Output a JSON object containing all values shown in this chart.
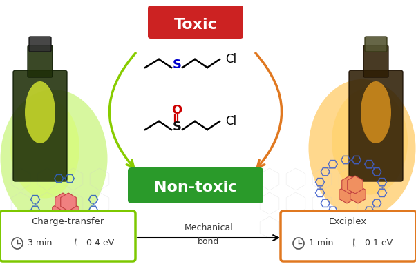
{
  "toxic_label": "Toxic",
  "nontoxic_label": "Non-toxic",
  "toxic_color": "#cc2222",
  "nontoxic_color": "#2a9a2a",
  "left_box_color": "#7dc800",
  "right_box_color": "#e07820",
  "left_title": "Charge-transfer",
  "right_title": "Exciplex",
  "left_time": "3 min",
  "left_energy": "0.4 eV",
  "right_time": "1 min",
  "right_energy": "0.1 eV",
  "arrow_label_top": "Mechanical",
  "arrow_label_bot": "bond",
  "green_arrow_color": "#88cc00",
  "orange_arrow_color": "#e07820",
  "sulfur_color_blue": "#0000cc",
  "sulfur_color_black": "#111111",
  "oxygen_color": "#cc0000",
  "bg_color": "#ffffff"
}
